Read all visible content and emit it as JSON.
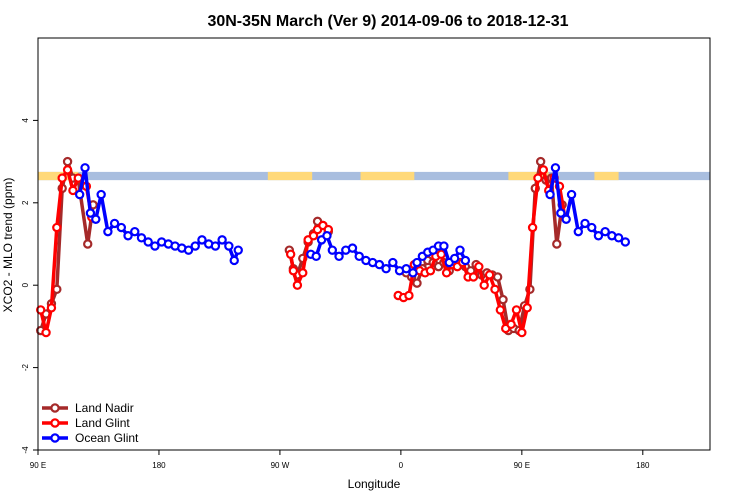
{
  "chart_data": {
    "type": "line",
    "title": "30N-35N March (Ver 9)   2014-09-06 to 2018-12-31",
    "xlabel": "Longitude",
    "ylabel": "XCO2 - MLO trend (ppm)",
    "xlim": [
      -90,
      410
    ],
    "ylim": [
      -4,
      6
    ],
    "x_ticks": [
      -90,
      0,
      90,
      180,
      270,
      360
    ],
    "x_tick_labels": [
      "90 E",
      "180",
      "90 W",
      "0",
      "90 E",
      "180"
    ],
    "y_ticks": [
      -4,
      -2,
      0,
      2,
      4
    ],
    "y_tick_labels": [
      "-4",
      "-2",
      "0",
      "2",
      "4"
    ],
    "grid": false,
    "legend_position": "bottom-left",
    "surface_band": {
      "y_range": [
        2.55,
        2.75
      ],
      "land_color": "#ffd97a",
      "ocean_color": "#a9bedf",
      "land_segments": [
        [
          -90,
          -60
        ],
        [
          81,
          114
        ],
        [
          150,
          190
        ],
        [
          260,
          290
        ],
        [
          324,
          342
        ]
      ]
    },
    "series": [
      {
        "name": "Land Nadir",
        "color": "#a52a2a",
        "points": [
          [
            -88,
            -1.1
          ],
          [
            -84,
            -0.7
          ],
          [
            -80,
            -0.45
          ],
          [
            -76,
            -0.1
          ],
          [
            -72,
            2.35
          ],
          [
            -68,
            3.0
          ],
          [
            -64,
            2.6
          ],
          [
            -60,
            2.55
          ],
          [
            -53,
            1.0
          ],
          [
            -49,
            1.95
          ],
          [
            97,
            0.85
          ],
          [
            100,
            0.4
          ],
          [
            103,
            0.25
          ],
          [
            107,
            0.65
          ],
          [
            111,
            1.05
          ],
          [
            115,
            1.25
          ],
          [
            118,
            1.55
          ],
          [
            122,
            1.45
          ],
          [
            126,
            1.3
          ],
          [
            184,
            0.3
          ],
          [
            188,
            0.2
          ],
          [
            192,
            0.05
          ],
          [
            196,
            0.4
          ],
          [
            200,
            0.6
          ],
          [
            204,
            0.55
          ],
          [
            208,
            0.45
          ],
          [
            212,
            0.55
          ],
          [
            216,
            0.35
          ],
          [
            220,
            0.6
          ],
          [
            224,
            0.55
          ],
          [
            228,
            0.45
          ],
          [
            232,
            0.35
          ],
          [
            236,
            0.5
          ],
          [
            240,
            0.25
          ],
          [
            244,
            0.3
          ],
          [
            248,
            0.25
          ],
          [
            252,
            0.2
          ],
          [
            256,
            -0.35
          ],
          [
            260,
            -1.1
          ],
          [
            264,
            -1.05
          ],
          [
            268,
            -1.1
          ],
          [
            272,
            -0.5
          ],
          [
            276,
            -0.1
          ],
          [
            280,
            2.35
          ],
          [
            284,
            3.0
          ],
          [
            288,
            2.55
          ],
          [
            292,
            2.6
          ],
          [
            296,
            1.0
          ],
          [
            300,
            1.95
          ]
        ]
      },
      {
        "name": "Land Glint",
        "color": "#ff0000",
        "points": [
          [
            -88,
            -0.6
          ],
          [
            -84,
            -1.15
          ],
          [
            -80,
            -0.55
          ],
          [
            -76,
            1.4
          ],
          [
            -72,
            2.6
          ],
          [
            -68,
            2.8
          ],
          [
            -64,
            2.3
          ],
          [
            -60,
            2.6
          ],
          [
            -54,
            2.4
          ],
          [
            -50,
            1.65
          ],
          [
            98,
            0.75
          ],
          [
            100,
            0.35
          ],
          [
            103,
            0.0
          ],
          [
            107,
            0.3
          ],
          [
            111,
            1.1
          ],
          [
            115,
            1.2
          ],
          [
            118,
            1.35
          ],
          [
            122,
            1.45
          ],
          [
            126,
            1.35
          ],
          [
            178,
            -0.25
          ],
          [
            182,
            -0.3
          ],
          [
            186,
            -0.25
          ],
          [
            190,
            0.5
          ],
          [
            194,
            0.35
          ],
          [
            198,
            0.3
          ],
          [
            202,
            0.35
          ],
          [
            206,
            0.7
          ],
          [
            210,
            0.75
          ],
          [
            214,
            0.3
          ],
          [
            218,
            0.5
          ],
          [
            222,
            0.45
          ],
          [
            226,
            0.55
          ],
          [
            230,
            0.2
          ],
          [
            234,
            0.2
          ],
          [
            238,
            0.45
          ],
          [
            242,
            0.0
          ],
          [
            246,
            0.25
          ],
          [
            250,
            -0.1
          ],
          [
            254,
            -0.6
          ],
          [
            258,
            -1.05
          ],
          [
            262,
            -0.95
          ],
          [
            266,
            -0.6
          ],
          [
            270,
            -1.15
          ],
          [
            274,
            -0.55
          ],
          [
            278,
            1.4
          ],
          [
            282,
            2.6
          ],
          [
            286,
            2.8
          ],
          [
            290,
            2.3
          ],
          [
            294,
            2.6
          ],
          [
            298,
            2.4
          ],
          [
            302,
            1.65
          ]
        ]
      },
      {
        "name": "Ocean Glint",
        "color": "#0000ff",
        "points": [
          [
            -59,
            2.2
          ],
          [
            -55,
            2.85
          ],
          [
            -51,
            1.75
          ],
          [
            -47,
            1.6
          ],
          [
            -43,
            2.2
          ],
          [
            -38,
            1.3
          ],
          [
            -33,
            1.5
          ],
          [
            -28,
            1.4
          ],
          [
            -23,
            1.2
          ],
          [
            -18,
            1.3
          ],
          [
            -13,
            1.15
          ],
          [
            -8,
            1.05
          ],
          [
            -3,
            0.95
          ],
          [
            2,
            1.05
          ],
          [
            7,
            1.0
          ],
          [
            12,
            0.95
          ],
          [
            17,
            0.9
          ],
          [
            22,
            0.85
          ],
          [
            27,
            0.95
          ],
          [
            32,
            1.1
          ],
          [
            37,
            1.0
          ],
          [
            42,
            0.95
          ],
          [
            47,
            1.1
          ],
          [
            52,
            0.95
          ],
          [
            56,
            0.6
          ],
          [
            59,
            0.85
          ],
          [
            113,
            0.75
          ],
          [
            117,
            0.7
          ],
          [
            121,
            1.1
          ],
          [
            125,
            1.2
          ],
          [
            129,
            0.85
          ],
          [
            134,
            0.7
          ],
          [
            139,
            0.85
          ],
          [
            144,
            0.9
          ],
          [
            149,
            0.7
          ],
          [
            154,
            0.6
          ],
          [
            159,
            0.55
          ],
          [
            164,
            0.5
          ],
          [
            169,
            0.4
          ],
          [
            174,
            0.55
          ],
          [
            179,
            0.35
          ],
          [
            184,
            0.4
          ],
          [
            189,
            0.3
          ],
          [
            192,
            0.55
          ],
          [
            196,
            0.7
          ],
          [
            200,
            0.8
          ],
          [
            204,
            0.85
          ],
          [
            208,
            0.95
          ],
          [
            212,
            0.95
          ],
          [
            216,
            0.55
          ],
          [
            220,
            0.65
          ],
          [
            224,
            0.85
          ],
          [
            228,
            0.6
          ],
          [
            291,
            2.2
          ],
          [
            295,
            2.85
          ],
          [
            299,
            1.75
          ],
          [
            303,
            1.6
          ],
          [
            307,
            2.2
          ],
          [
            312,
            1.3
          ],
          [
            317,
            1.5
          ],
          [
            322,
            1.4
          ],
          [
            327,
            1.2
          ],
          [
            332,
            1.3
          ],
          [
            337,
            1.2
          ],
          [
            342,
            1.15
          ],
          [
            347,
            1.05
          ]
        ]
      }
    ]
  }
}
